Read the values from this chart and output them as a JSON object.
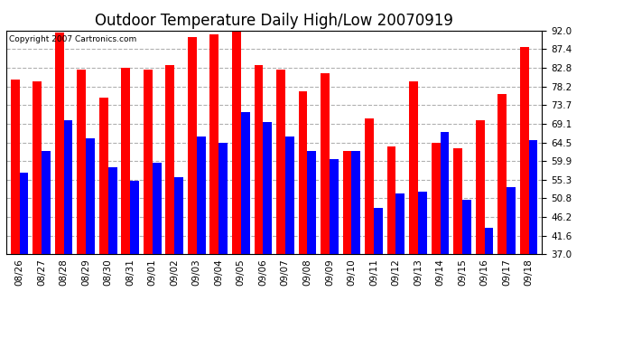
{
  "title": "Outdoor Temperature Daily High/Low 20070919",
  "copyright": "Copyright 2007 Cartronics.com",
  "dates": [
    "08/26",
    "08/27",
    "08/28",
    "08/29",
    "08/30",
    "08/31",
    "09/01",
    "09/02",
    "09/03",
    "09/04",
    "09/05",
    "09/06",
    "09/07",
    "09/08",
    "09/09",
    "09/10",
    "09/11",
    "09/12",
    "09/13",
    "09/14",
    "09/15",
    "09/16",
    "09/17",
    "09/18"
  ],
  "highs": [
    80.0,
    79.5,
    91.5,
    82.5,
    75.5,
    82.8,
    82.5,
    83.5,
    90.5,
    91.0,
    92.0,
    83.5,
    82.5,
    77.0,
    81.5,
    62.5,
    70.5,
    63.5,
    79.5,
    64.5,
    63.0,
    70.0,
    76.5,
    88.0
  ],
  "lows": [
    57.0,
    62.5,
    70.0,
    65.5,
    58.5,
    55.0,
    59.5,
    56.0,
    66.0,
    64.5,
    72.0,
    69.5,
    66.0,
    62.5,
    60.5,
    62.5,
    48.5,
    52.0,
    52.5,
    67.0,
    50.5,
    43.5,
    53.5,
    65.0
  ],
  "high_color": "#ff0000",
  "low_color": "#0000ff",
  "bg_color": "#ffffff",
  "plot_bg_color": "#ffffff",
  "grid_color": "#b0b0b0",
  "ybase": 37.0,
  "ylim_min": 37.0,
  "ylim_max": 92.0,
  "yticks": [
    37.0,
    41.6,
    46.2,
    50.8,
    55.3,
    59.9,
    64.5,
    69.1,
    73.7,
    78.2,
    82.8,
    87.4,
    92.0
  ],
  "title_fontsize": 12,
  "tick_fontsize": 7.5,
  "copyright_fontsize": 6.5
}
